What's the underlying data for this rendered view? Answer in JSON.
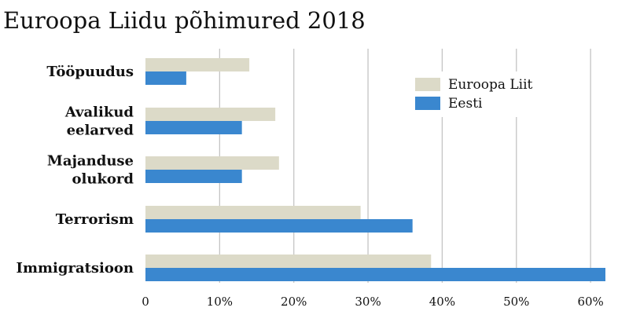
{
  "chart_data": {
    "type": "bar",
    "orientation": "horizontal",
    "title": "Euroopa Liidu põhimured 2018",
    "categories": [
      [
        "Tööpuudus"
      ],
      [
        "Avalikud",
        "eelarved"
      ],
      [
        "Majanduse",
        "olukord"
      ],
      [
        "Terrorism"
      ],
      [
        "Immigratsioon"
      ]
    ],
    "series": [
      {
        "name": "Euroopa Liit",
        "color": "#dcdac8",
        "values": [
          14,
          17.5,
          18,
          29,
          38.5
        ]
      },
      {
        "name": "Eesti",
        "color": "#3a87cf",
        "values": [
          5.5,
          13,
          13,
          36,
          62
        ]
      }
    ],
    "xlim": [
      0,
      62
    ],
    "xticks": [
      0,
      10,
      20,
      30,
      40,
      50,
      60
    ],
    "xtick_labels": [
      "0",
      "10%",
      "20%",
      "30%",
      "40%",
      "50%",
      "60%"
    ],
    "xlabel": "",
    "ylabel": "",
    "grid": "vertical",
    "legend_position": "top-right"
  }
}
